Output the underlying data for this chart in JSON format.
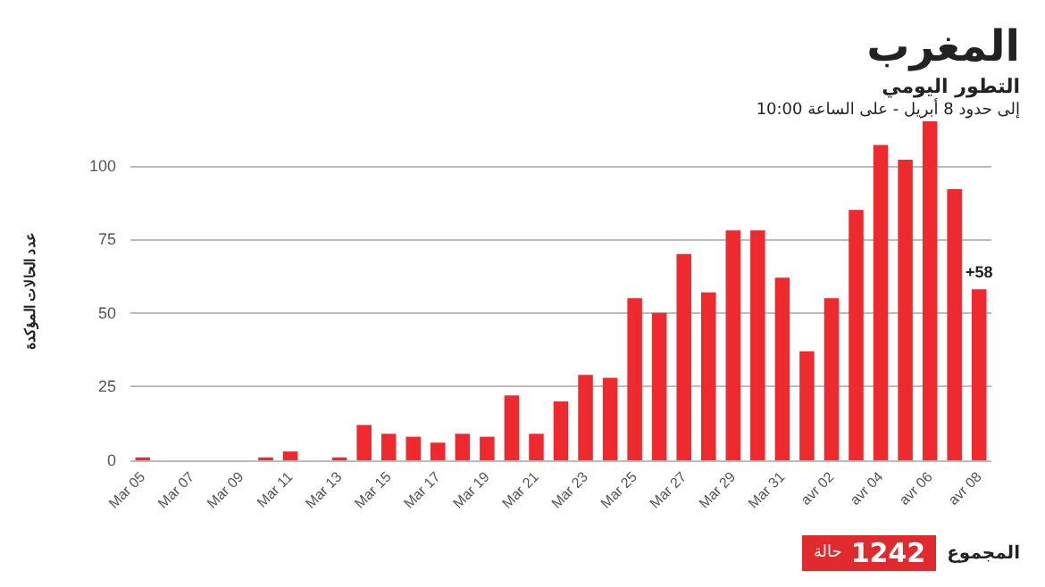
{
  "chart_data": {
    "type": "bar",
    "title": "المغرب",
    "subtitle": "التطور اليومي",
    "ylabel": "عدد الحالات المؤكدة",
    "annotations": [
      "إلى حدود 8 أبريل - على الساعة 10:00",
      "المجموع",
      "1242",
      "حالة"
    ],
    "categories": [
      "Mar 05",
      null,
      "Mar 07",
      null,
      "Mar 09",
      null,
      "Mar 11",
      null,
      "Mar 13",
      null,
      "Mar 15",
      null,
      "Mar 17",
      null,
      "Mar 19",
      null,
      "Mar 21",
      null,
      "Mar 23",
      null,
      "Mar 25",
      null,
      "Mar 27",
      null,
      "Mar 29",
      null,
      "Mar 31",
      null,
      "avr 02",
      null,
      "avr 04",
      null,
      "avr 06",
      null,
      "avr 08"
    ],
    "values": [
      1,
      0,
      0,
      0,
      0,
      1,
      3,
      0,
      1,
      12,
      9,
      8,
      6,
      9,
      8,
      22,
      9,
      20,
      29,
      28,
      55,
      50,
      70,
      57,
      78,
      78,
      62,
      37,
      55,
      85,
      107,
      102,
      115,
      92,
      58
    ],
    "value_labels": [
      null,
      null,
      null,
      null,
      null,
      null,
      null,
      null,
      null,
      null,
      null,
      null,
      null,
      null,
      null,
      null,
      null,
      null,
      null,
      null,
      null,
      null,
      null,
      null,
      null,
      null,
      null,
      null,
      null,
      null,
      null,
      null,
      null,
      null,
      "+58"
    ],
    "color": "#ee2a2f",
    "ylim": [
      0,
      115
    ],
    "yticks": [
      0,
      25,
      50,
      75,
      100
    ],
    "grid": "y"
  }
}
